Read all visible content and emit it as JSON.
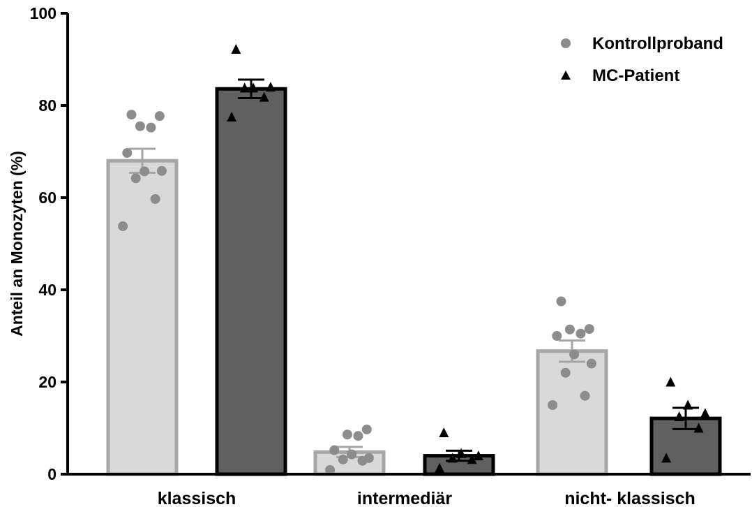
{
  "colors": {
    "control_fill": "#d9d9d9",
    "control_edge": "#a6a6a6",
    "control_dot": "#8c8c8c",
    "patient_fill": "#606060",
    "patient_edge": "#000000",
    "patient_mark": "#000000",
    "axis": "#000000"
  },
  "chart_data": {
    "type": "bar",
    "title": "",
    "xlabel": "",
    "ylabel": "Anteil an Monozyten (%)",
    "ylim": [
      0,
      100
    ],
    "yticks": [
      "0",
      "20",
      "40",
      "60",
      "80",
      "100"
    ],
    "categories": [
      "klassisch",
      "intermediär",
      "nicht- klassisch"
    ],
    "legend_position": "top-right",
    "series": [
      {
        "name": "Kontrollproband",
        "marker": "circle",
        "values": [
          68,
          4.8,
          26.7
        ],
        "sem": [
          2.6,
          1.1,
          2.3
        ],
        "points": [
          [
            53.8,
            59.7,
            64.2,
            65.8,
            65.7,
            69.7,
            75.2,
            75.5,
            77.7,
            78.0
          ],
          [
            0.9,
            2.9,
            3.2,
            3.5,
            4.3,
            5.2,
            8.3,
            8.6,
            9.7
          ],
          [
            15.0,
            17.0,
            22.0,
            24.0,
            26.0,
            30.0,
            30.5,
            31.4,
            31.5,
            37.5
          ]
        ]
      },
      {
        "name": "MC-Patient",
        "marker": "triangle",
        "values": [
          83.6,
          4.0,
          12.1
        ],
        "sem": [
          2.0,
          1.1,
          2.3
        ],
        "points": [
          [
            77.5,
            81.8,
            83.8,
            84.0,
            83.8,
            92.2
          ],
          [
            1.3,
            3.2,
            3.5,
            4.0,
            4.5,
            9.0
          ],
          [
            3.5,
            10.0,
            12.5,
            13.2,
            15.0,
            20.0
          ]
        ]
      }
    ]
  }
}
